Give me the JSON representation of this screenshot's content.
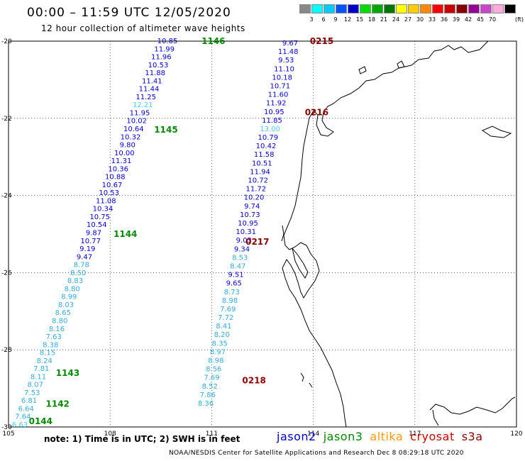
{
  "title": "00:00 – 11:59 UTC 12/05/2020",
  "subtitle": "12 hour collection of altimeter wave heights",
  "legend": {
    "unit": "(ft)",
    "swatches": [
      {
        "label": "",
        "color": "#888888"
      },
      {
        "label": "3",
        "color": "#00ffff"
      },
      {
        "label": "6",
        "color": "#00ccff"
      },
      {
        "label": "9",
        "color": "#0055ff"
      },
      {
        "label": "12",
        "color": "#0000cc"
      },
      {
        "label": "15",
        "color": "#00dd00"
      },
      {
        "label": "18",
        "color": "#00aa00"
      },
      {
        "label": "21",
        "color": "#007700"
      },
      {
        "label": "24",
        "color": "#ffff00"
      },
      {
        "label": "27",
        "color": "#ffcc00"
      },
      {
        "label": "30",
        "color": "#ff8800"
      },
      {
        "label": "33",
        "color": "#ff0000"
      },
      {
        "label": "36",
        "color": "#cc0000"
      },
      {
        "label": "39",
        "color": "#880000"
      },
      {
        "label": "42",
        "color": "#990099"
      },
      {
        "label": "45",
        "color": "#cc44cc"
      },
      {
        "label": "70",
        "color": "#ffaadd"
      },
      {
        "label": "",
        "color": "#000000"
      }
    ]
  },
  "map": {
    "lon_ticks": [
      "105",
      "108",
      "111",
      "114",
      "117",
      "120"
    ],
    "lat_ticks": [
      "-20",
      "-22",
      "-24",
      "-26",
      "-28",
      "-30"
    ],
    "lon_range": [
      105,
      120
    ],
    "lat_range": [
      -20,
      -30
    ]
  },
  "colors": {
    "jason2": "#0000cc",
    "jason3": "#008800",
    "altika": "#ff9900",
    "cryosat": "#cc0000",
    "s3a": "#880000",
    "light": "#33aadd",
    "pale": "#44ccee"
  },
  "tracks": [
    {
      "name": "west-track",
      "times": [
        {
          "text": "1146",
          "lon": 110.7,
          "lat": -20.0
        },
        {
          "text": "1145",
          "lon": 109.3,
          "lat": -22.3
        },
        {
          "text": "1144",
          "lon": 108.1,
          "lat": -25.0
        },
        {
          "text": "1143",
          "lon": 106.4,
          "lat": -28.6
        },
        {
          "text": "1142",
          "lon": 106.1,
          "lat": -29.4
        },
        {
          "text": "0144",
          "lon": 105.6,
          "lat": -29.85
        }
      ],
      "values": [
        {
          "v": "10.85",
          "c": "jason2"
        },
        {
          "v": "11.99",
          "c": "jason2"
        },
        {
          "v": "11.96",
          "c": "jason2"
        },
        {
          "v": "10.53",
          "c": "jason2"
        },
        {
          "v": "11.88",
          "c": "jason2"
        },
        {
          "v": "11.41",
          "c": "jason2"
        },
        {
          "v": "11.44",
          "c": "jason2"
        },
        {
          "v": "11.25",
          "c": "jason2"
        },
        {
          "v": "12.21",
          "c": "pale"
        },
        {
          "v": "11.95",
          "c": "jason2"
        },
        {
          "v": "10.02",
          "c": "jason2"
        },
        {
          "v": "10.64",
          "c": "jason2"
        },
        {
          "v": "10.32",
          "c": "jason2"
        },
        {
          "v": "9.80",
          "c": "jason2"
        },
        {
          "v": "10.00",
          "c": "jason2"
        },
        {
          "v": "11.31",
          "c": "jason2"
        },
        {
          "v": "10.36",
          "c": "jason2"
        },
        {
          "v": "10.88",
          "c": "jason2"
        },
        {
          "v": "10.67",
          "c": "jason2"
        },
        {
          "v": "10.53",
          "c": "jason2"
        },
        {
          "v": "11.08",
          "c": "jason2"
        },
        {
          "v": "10.34",
          "c": "jason2"
        },
        {
          "v": "10.75",
          "c": "jason2"
        },
        {
          "v": "10.54",
          "c": "jason2"
        },
        {
          "v": "9.87",
          "c": "jason2"
        },
        {
          "v": "10.77",
          "c": "jason2"
        },
        {
          "v": "9.19",
          "c": "jason2"
        },
        {
          "v": "9.47",
          "c": "jason2"
        },
        {
          "v": "8.78",
          "c": "light"
        },
        {
          "v": "8.50",
          "c": "light"
        },
        {
          "v": "8.83",
          "c": "light"
        },
        {
          "v": "8.80",
          "c": "light"
        },
        {
          "v": "8.99",
          "c": "light"
        },
        {
          "v": "8.03",
          "c": "light"
        },
        {
          "v": "8.65",
          "c": "light"
        },
        {
          "v": "8.80",
          "c": "light"
        },
        {
          "v": "8.16",
          "c": "light"
        },
        {
          "v": "7.63",
          "c": "light"
        },
        {
          "v": "8.38",
          "c": "light"
        },
        {
          "v": "8.15",
          "c": "light"
        },
        {
          "v": "8.24",
          "c": "light"
        },
        {
          "v": "7.81",
          "c": "light"
        },
        {
          "v": "8.11",
          "c": "light"
        },
        {
          "v": "8.07",
          "c": "light"
        },
        {
          "v": "7.53",
          "c": "light"
        },
        {
          "v": "6.81",
          "c": "light"
        },
        {
          "v": "6.64",
          "c": "light"
        },
        {
          "v": "7.64",
          "c": "light"
        },
        {
          "v": "6.63",
          "c": "pale"
        }
      ]
    },
    {
      "name": "middle-track",
      "times": [
        {
          "text": "0215",
          "lon": 113.9,
          "lat": -20.0
        },
        {
          "text": "0216",
          "lon": 113.75,
          "lat": -21.85
        },
        {
          "text": "0217",
          "lon": 112.0,
          "lat": -25.2
        },
        {
          "text": "0218",
          "lon": 111.9,
          "lat": -28.8
        }
      ],
      "values": [
        {
          "v": "9.67",
          "c": "jason2"
        },
        {
          "v": "11.48",
          "c": "jason2"
        },
        {
          "v": "9.53",
          "c": "jason2"
        },
        {
          "v": "11.10",
          "c": "jason2"
        },
        {
          "v": "10.18",
          "c": "jason2"
        },
        {
          "v": "10.71",
          "c": "jason2"
        },
        {
          "v": "11.60",
          "c": "jason2"
        },
        {
          "v": "11.92",
          "c": "jason2"
        },
        {
          "v": "10.95",
          "c": "jason2"
        },
        {
          "v": "11.85",
          "c": "jason2"
        },
        {
          "v": "13.00",
          "c": "pale"
        },
        {
          "v": "10.79",
          "c": "jason2"
        },
        {
          "v": "10.42",
          "c": "jason2"
        },
        {
          "v": "11.58",
          "c": "jason2"
        },
        {
          "v": "10.51",
          "c": "jason2"
        },
        {
          "v": "11.94",
          "c": "jason2"
        },
        {
          "v": "10.72",
          "c": "jason2"
        },
        {
          "v": "11.72",
          "c": "jason2"
        },
        {
          "v": "10.20",
          "c": "jason2"
        },
        {
          "v": "9.74",
          "c": "jason2"
        },
        {
          "v": "10.73",
          "c": "jason2"
        },
        {
          "v": "10.95",
          "c": "jason2"
        },
        {
          "v": "10.31",
          "c": "jason2"
        },
        {
          "v": "9.03",
          "c": "jason2"
        },
        {
          "v": "9.34",
          "c": "jason2"
        },
        {
          "v": "8.53",
          "c": "light"
        },
        {
          "v": "8.47",
          "c": "light"
        },
        {
          "v": "9.51",
          "c": "jason2"
        },
        {
          "v": "9.65",
          "c": "jason2"
        },
        {
          "v": "8.73",
          "c": "light"
        },
        {
          "v": "8.98",
          "c": "light"
        },
        {
          "v": "7.69",
          "c": "light"
        },
        {
          "v": "7.72",
          "c": "light"
        },
        {
          "v": "8.41",
          "c": "light"
        },
        {
          "v": "8.20",
          "c": "light"
        },
        {
          "v": "8.35",
          "c": "light"
        },
        {
          "v": "8.97",
          "c": "light"
        },
        {
          "v": "8.98",
          "c": "light"
        },
        {
          "v": "8.56",
          "c": "light"
        },
        {
          "v": "7.69",
          "c": "light"
        },
        {
          "v": "8.52",
          "c": "light"
        },
        {
          "v": "7.86",
          "c": "light"
        },
        {
          "v": "8.36",
          "c": "light"
        }
      ]
    }
  ],
  "note": "note:  1) Time is in UTC;  2) SWH is in feet",
  "satellites": [
    {
      "name": "jason2",
      "color": "#0000cc"
    },
    {
      "name": "jason3",
      "color": "#008800"
    },
    {
      "name": "altika",
      "color": "#ff9900"
    },
    {
      "name": "cryosat",
      "color": "#cc0000"
    },
    {
      "name": "s3a",
      "color": "#880000"
    }
  ],
  "credit": "NOAA/NESDIS Center for Satellite Applications and Research    Dec  8 08:29:18 UTC 2020"
}
